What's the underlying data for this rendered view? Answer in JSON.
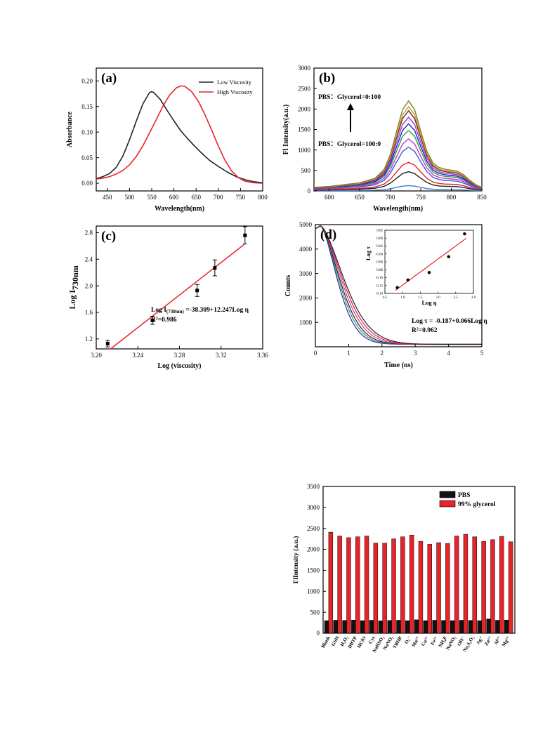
{
  "chart_data": [
    {
      "id": "a",
      "type": "line",
      "panel_label": "(a)",
      "xlabel": "Wavelength(nm)",
      "ylabel": "Absorbance",
      "xlim": [
        425,
        800
      ],
      "ylim": [
        -0.015,
        0.225
      ],
      "xticks": [
        450,
        500,
        550,
        600,
        650,
        700,
        750,
        800
      ],
      "yticks": [
        0.0,
        0.05,
        0.1,
        0.15,
        0.2
      ],
      "ytick_labels": [
        "0.00",
        "0.05",
        "0.10",
        "0.15",
        "0.20"
      ],
      "legend_position": "top-right",
      "series": [
        {
          "name": "Low Viscosity",
          "color": "#222222",
          "x": [
            425,
            440,
            455,
            470,
            485,
            500,
            515,
            530,
            545,
            550,
            555,
            570,
            585,
            600,
            615,
            630,
            645,
            660,
            680,
            700,
            720,
            740,
            760,
            780,
            800
          ],
          "y": [
            0.009,
            0.013,
            0.019,
            0.031,
            0.053,
            0.085,
            0.121,
            0.155,
            0.177,
            0.179,
            0.177,
            0.163,
            0.142,
            0.122,
            0.103,
            0.088,
            0.074,
            0.061,
            0.045,
            0.033,
            0.022,
            0.013,
            0.007,
            0.003,
            0.001
          ]
        },
        {
          "name": "High Viscosity",
          "color": "#e8232a",
          "x": [
            425,
            440,
            455,
            470,
            485,
            500,
            515,
            530,
            545,
            560,
            575,
            590,
            605,
            615,
            620,
            625,
            640,
            655,
            670,
            685,
            700,
            715,
            730,
            745,
            760,
            780,
            800
          ],
          "y": [
            0.008,
            0.01,
            0.013,
            0.018,
            0.025,
            0.036,
            0.052,
            0.073,
            0.098,
            0.124,
            0.15,
            0.172,
            0.186,
            0.19,
            0.19,
            0.189,
            0.179,
            0.16,
            0.134,
            0.104,
            0.073,
            0.045,
            0.024,
            0.011,
            0.004,
            0.001,
            0.0
          ]
        }
      ]
    },
    {
      "id": "b",
      "type": "line",
      "panel_label": "(b)",
      "xlabel": "Wavelength(nm)",
      "ylabel": "Fl Intensity(a.u.)",
      "xlim": [
        575,
        850
      ],
      "ylim": [
        0,
        3000
      ],
      "xticks": [
        600,
        650,
        700,
        750,
        800,
        850
      ],
      "yticks": [
        0,
        500,
        1000,
        1500,
        2000,
        2500,
        3000
      ],
      "annotations": [
        "PBS：Glycerol=0:100",
        "PBS：Glycerol=100:0"
      ],
      "peaks": [
        130,
        470,
        700,
        1070,
        1270,
        1480,
        1640,
        1800,
        1960,
        2060,
        2200
      ],
      "colors": [
        "#3a7dc9",
        "#222222",
        "#e8232a",
        "#3b5bdb",
        "#c43ad6",
        "#2e9e3e",
        "#2020c8",
        "#9b3fd0",
        "#7a1f2b",
        "#c8a020",
        "#7f7f2a"
      ],
      "shape_x": [
        575,
        600,
        625,
        650,
        675,
        690,
        700,
        710,
        720,
        730,
        740,
        750,
        760,
        770,
        780,
        790,
        800,
        810,
        820,
        830,
        840,
        850
      ],
      "shape_y": [
        0.04,
        0.05,
        0.07,
        0.09,
        0.14,
        0.24,
        0.4,
        0.65,
        0.9,
        1.0,
        0.9,
        0.66,
        0.44,
        0.31,
        0.26,
        0.24,
        0.23,
        0.22,
        0.18,
        0.12,
        0.07,
        0.04
      ]
    },
    {
      "id": "c",
      "type": "scatter",
      "panel_label": "(c)",
      "xlabel": "Log (viscosity)",
      "ylabel": "Log I",
      "ylabel_sub": "730nm",
      "xlim": [
        3.2,
        3.36
      ],
      "ylim": [
        1.05,
        2.9
      ],
      "xticks": [
        3.2,
        3.24,
        3.28,
        3.32,
        3.36
      ],
      "xtick_labels": [
        "3.20",
        "3.24",
        "3.28",
        "3.32",
        "3.36"
      ],
      "yticks": [
        1.2,
        1.6,
        2.0,
        2.4,
        2.8
      ],
      "ytick_labels": [
        "1.2",
        "1.6",
        "2.0",
        "2.4",
        "2.8"
      ],
      "points_x": [
        3.211,
        3.254,
        3.297,
        3.314,
        3.343
      ],
      "points_y": [
        1.13,
        1.48,
        1.93,
        2.27,
        2.76
      ],
      "errors": [
        0.05,
        0.06,
        0.09,
        0.12,
        0.13
      ],
      "fit_x": [
        3.213,
        3.342
      ],
      "fit_y": [
        1.04,
        2.62
      ],
      "equation_prefix": "Log I",
      "equation_sub": "(730nm)",
      "equation_rest": " =-38.309+12.247Log η",
      "r2": "R²=0.986"
    },
    {
      "id": "d",
      "type": "line",
      "panel_label": "(d)",
      "xlabel": "Time (ns)",
      "ylabel": "Counts",
      "xlim": [
        0,
        5
      ],
      "ylim": [
        0,
        5000
      ],
      "xticks": [
        0,
        1,
        2,
        3,
        4,
        5
      ],
      "yticks": [
        1000,
        2000,
        3000,
        4000,
        5000
      ],
      "decay_taus": [
        0.5,
        0.55,
        0.6,
        0.66,
        0.72,
        0.78
      ],
      "decay_colors": [
        "#2a2acb",
        "#2e9e3e",
        "#222222",
        "#c43ad6",
        "#e8232a",
        "#222222"
      ],
      "equation": "Log τ = -0.187+0.066Log η",
      "r2": "R²=0.962",
      "inset": {
        "xlabel": "Log η",
        "ylabel": "Log τ",
        "xlim": [
          0.5,
          3.0
        ],
        "ylim": [
          -0.14,
          0.02
        ],
        "xticks": [
          0.5,
          1.0,
          1.5,
          2.0,
          2.5,
          3.0
        ],
        "xtick_labels": [
          "0.5",
          "1.0",
          "1.5",
          "2.0",
          "2.5",
          "3.0"
        ],
        "yticks": [
          -0.14,
          -0.12,
          -0.1,
          -0.08,
          -0.06,
          -0.04,
          -0.02,
          0.0,
          0.02
        ],
        "ytick_labels": [
          "-0.14",
          "-0.12",
          "-0.10",
          "-0.08",
          "-0.06",
          "-0.04",
          "-0.02",
          "0.00",
          "0.02"
        ],
        "points_x": [
          0.85,
          1.15,
          1.75,
          2.3,
          2.75
        ],
        "points_y": [
          -0.125,
          -0.106,
          -0.087,
          -0.047,
          0.011
        ],
        "fit_x": [
          0.8,
          2.8
        ],
        "fit_y": [
          -0.132,
          0.0
        ]
      }
    },
    {
      "id": "e",
      "type": "bar",
      "xlabel": "",
      "ylabel": "FlIntensity (a.u.)",
      "ylim": [
        0,
        3500
      ],
      "yticks": [
        0,
        500,
        1000,
        1500,
        2000,
        2500,
        3000,
        3500
      ],
      "legend_position": "top-right",
      "categories": [
        "Blank",
        "GSH",
        "H₂O₂",
        "DBTP",
        "HClO",
        "Cys",
        "NaHSO₃",
        "NaNO₂",
        "TBHP",
        "O₂⁻",
        "Mn²⁺",
        "Cu²⁺",
        "Fe²⁺",
        "NH₄F",
        "NaNO₃",
        "OH⁻",
        "Na₂S₂O₃",
        "Ag⁺",
        "Zn²⁺",
        "Al³⁺",
        "Mg²⁺"
      ],
      "series": [
        {
          "name": "PBS",
          "color": "#111111",
          "values": [
            300,
            310,
            305,
            315,
            300,
            310,
            295,
            305,
            310,
            300,
            320,
            300,
            310,
            305,
            300,
            310,
            305,
            300,
            340,
            310,
            315
          ]
        },
        {
          "name": "99% glycerol",
          "color": "#e8232a",
          "values": [
            2410,
            2320,
            2280,
            2300,
            2320,
            2150,
            2150,
            2250,
            2300,
            2340,
            2190,
            2120,
            2160,
            2140,
            2320,
            2360,
            2300,
            2190,
            2230,
            2310,
            2180
          ]
        }
      ]
    }
  ]
}
